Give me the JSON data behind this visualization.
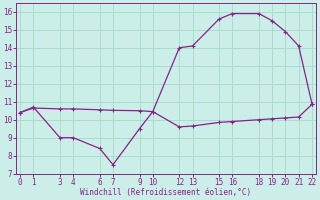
{
  "xlabel": "Windchill (Refroidissement éolien,°C)",
  "line_color": "#882288",
  "bg_color": "#cceee8",
  "grid_color": "#aaddcc",
  "ylim": [
    7,
    16.5
  ],
  "xlim": [
    -0.3,
    22.3
  ],
  "yticks": [
    7,
    8,
    9,
    10,
    11,
    12,
    13,
    14,
    15,
    16
  ],
  "xticks": [
    0,
    1,
    3,
    4,
    6,
    7,
    9,
    10,
    12,
    13,
    15,
    16,
    18,
    19,
    20,
    21,
    22
  ],
  "x_curve": [
    0,
    1,
    3,
    4,
    6,
    7,
    9,
    10,
    12,
    13,
    15,
    16,
    18,
    19,
    20,
    21,
    22
  ],
  "y_curve": [
    10.4,
    10.7,
    9.0,
    9.0,
    8.4,
    7.5,
    9.5,
    10.45,
    14.0,
    14.1,
    15.6,
    15.9,
    15.9,
    15.5,
    14.9,
    14.1,
    10.9
  ],
  "x_flat": [
    0,
    1,
    3,
    4,
    6,
    7,
    9,
    10,
    12,
    13,
    15,
    16,
    18,
    19,
    20,
    21,
    22
  ],
  "y_flat": [
    10.4,
    10.65,
    10.6,
    10.6,
    10.55,
    10.52,
    10.5,
    10.45,
    9.6,
    9.65,
    9.85,
    9.9,
    10.0,
    10.05,
    10.1,
    10.15,
    10.85
  ]
}
